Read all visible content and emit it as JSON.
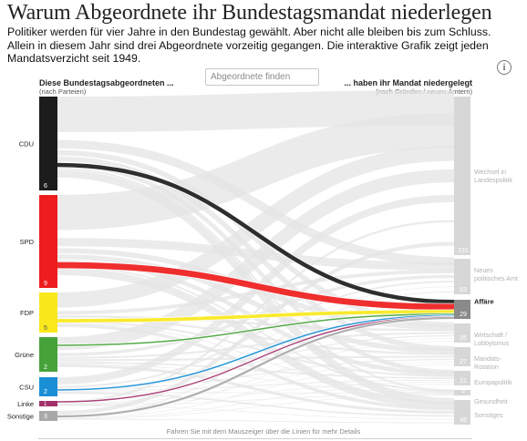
{
  "header": {
    "title": "Warum Abgeordnete ihr Bundestagsmandat niederlegen",
    "subtitle": "Politiker werden für vier Jahre in den Bundestag gewählt. Aber nicht alle bleiben bis zum Schluss. Allein in diesem Jahr sind drei Abgeordnete vorzeitig gegangen. Die interaktive Grafik zeigt jeden Mandatsverzicht seit 1949."
  },
  "controls": {
    "search_placeholder": "Abgeordnete finden",
    "info_icon": "info-icon"
  },
  "left_header": {
    "title": "Diese Bundestagsabgeordneten ...",
    "sub": "(nach Parteien)"
  },
  "right_header": {
    "title": "... haben ihr Mandat niedergelegt",
    "sub": "(nach Gründen / neuen Ämtern)"
  },
  "hint": "Fahren Sie mit dem Mauszeiger über die Linien für mehr Details",
  "highlighted_reason": "Affäre",
  "chart_data": {
    "type": "sankey",
    "sources": [
      {
        "name": "CDU",
        "color": "#1c1c1c",
        "value_label": "6"
      },
      {
        "name": "SPD",
        "color": "#ee1c1c",
        "value_label": "9"
      },
      {
        "name": "FDP",
        "color": "#f8e81c",
        "value_label": "5"
      },
      {
        "name": "Grüne",
        "color": "#46a33a",
        "value_label": "2"
      },
      {
        "name": "CSU",
        "color": "#1a8fd6",
        "value_label": "2"
      },
      {
        "name": "Linke",
        "color": "#a2316a",
        "value_label": "1"
      },
      {
        "name": "Sonstige",
        "color": "#a8a8a8",
        "value_label": "3"
      }
    ],
    "targets": [
      {
        "name": "Wechsel in Landespolitik",
        "value_label": "231"
      },
      {
        "name": "Neues politisches Amt",
        "value_label": "53"
      },
      {
        "name": "Affäre",
        "value_label": "29"
      },
      {
        "name": "Wirtschaft / Lobbyismus",
        "value_label": "26"
      },
      {
        "name": "Mandats-Rotation",
        "value_label": "27"
      },
      {
        "name": "Europapolitik",
        "value_label": "21"
      },
      {
        "name": "Gesundheit",
        "value_label": "9"
      },
      {
        "name": "Sonstiges",
        "value_label": "46"
      }
    ],
    "highlighted_flows": [
      {
        "from": "CDU",
        "to": "Affäre",
        "value": 6
      },
      {
        "from": "SPD",
        "to": "Affäre",
        "value": 9
      },
      {
        "from": "FDP",
        "to": "Affäre",
        "value": 5
      },
      {
        "from": "Grüne",
        "to": "Affäre",
        "value": 2
      },
      {
        "from": "CSU",
        "to": "Affäre",
        "value": 2
      },
      {
        "from": "Linke",
        "to": "Affäre",
        "value": 1
      },
      {
        "from": "Sonstige",
        "to": "Affäre",
        "value": 3
      }
    ]
  }
}
